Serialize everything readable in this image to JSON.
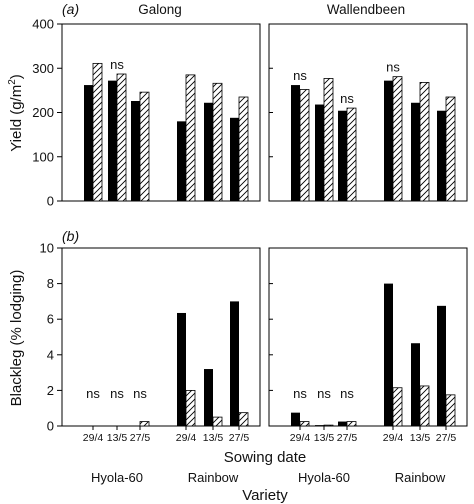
{
  "chart_data": [
    {
      "type": "bar",
      "panel_label": "(a)",
      "ylabel": "Yield (g/m²)",
      "ylabel_base": "Yield (g/m",
      "ylabel_sup": "2",
      "ylabel_end": ")",
      "ylim": [
        0,
        400
      ],
      "yticks": [
        "0",
        "100",
        "200",
        "300",
        "400"
      ],
      "facets": [
        {
          "title": "Galong",
          "groups": [
            {
              "variety": "Hyola-60",
              "dates": [
                {
                  "date": "29/4",
                  "solid": 262,
                  "hatched": 311,
                  "note": ""
                },
                {
                  "date": "13/5",
                  "solid": 272,
                  "hatched": 287,
                  "note": "ns"
                },
                {
                  "date": "27/5",
                  "solid": 226,
                  "hatched": 246,
                  "note": ""
                }
              ]
            },
            {
              "variety": "Rainbow",
              "dates": [
                {
                  "date": "29/4",
                  "solid": 180,
                  "hatched": 285,
                  "note": ""
                },
                {
                  "date": "13/5",
                  "solid": 222,
                  "hatched": 266,
                  "note": ""
                },
                {
                  "date": "27/5",
                  "solid": 188,
                  "hatched": 235,
                  "note": ""
                }
              ]
            }
          ]
        },
        {
          "title": "Wallendbeen",
          "groups": [
            {
              "variety": "Hyola-60",
              "dates": [
                {
                  "date": "29/4",
                  "solid": 262,
                  "hatched": 252,
                  "note": "ns"
                },
                {
                  "date": "13/5",
                  "solid": 218,
                  "hatched": 277,
                  "note": ""
                },
                {
                  "date": "27/5",
                  "solid": 204,
                  "hatched": 210,
                  "note": "ns"
                }
              ]
            },
            {
              "variety": "Rainbow",
              "dates": [
                {
                  "date": "29/4",
                  "solid": 272,
                  "hatched": 281,
                  "note": "ns"
                },
                {
                  "date": "13/5",
                  "solid": 222,
                  "hatched": 268,
                  "note": ""
                },
                {
                  "date": "27/5",
                  "solid": 204,
                  "hatched": 235,
                  "note": ""
                }
              ]
            }
          ]
        }
      ]
    },
    {
      "type": "bar",
      "panel_label": "(b)",
      "ylabel": "Blackleg (% lodging)",
      "ylim": [
        0,
        10
      ],
      "yticks": [
        "0",
        "2",
        "4",
        "6",
        "8",
        "10"
      ],
      "facets": [
        {
          "title": "",
          "groups": [
            {
              "variety": "Hyola-60",
              "dates": [
                {
                  "date": "29/4",
                  "solid": 0,
                  "hatched": 0,
                  "note": "ns"
                },
                {
                  "date": "13/5",
                  "solid": 0,
                  "hatched": 0,
                  "note": "ns"
                },
                {
                  "date": "27/5",
                  "solid": 0,
                  "hatched": 0.25,
                  "note": "ns"
                }
              ]
            },
            {
              "variety": "Rainbow",
              "dates": [
                {
                  "date": "29/4",
                  "solid": 6.35,
                  "hatched": 2.0,
                  "note": ""
                },
                {
                  "date": "13/5",
                  "solid": 3.2,
                  "hatched": 0.5,
                  "note": ""
                },
                {
                  "date": "27/5",
                  "solid": 7.0,
                  "hatched": 0.75,
                  "note": ""
                }
              ]
            }
          ]
        },
        {
          "title": "",
          "groups": [
            {
              "variety": "Hyola-60",
              "dates": [
                {
                  "date": "29/4",
                  "solid": 0.75,
                  "hatched": 0.25,
                  "note": "ns"
                },
                {
                  "date": "13/5",
                  "solid": 0.05,
                  "hatched": 0.05,
                  "note": "ns"
                },
                {
                  "date": "27/5",
                  "solid": 0.25,
                  "hatched": 0.25,
                  "note": "ns"
                }
              ]
            },
            {
              "variety": "Rainbow",
              "dates": [
                {
                  "date": "29/4",
                  "solid": 8.0,
                  "hatched": 2.15,
                  "note": ""
                },
                {
                  "date": "13/5",
                  "solid": 4.65,
                  "hatched": 2.25,
                  "note": ""
                },
                {
                  "date": "27/5",
                  "solid": 6.75,
                  "hatched": 1.75,
                  "note": ""
                }
              ]
            }
          ]
        }
      ]
    }
  ],
  "x_axis": {
    "sowing_label": "Sowing date",
    "variety_label": "Variety"
  },
  "colors": {
    "solid": "#000000",
    "hatch_line": "#000000",
    "hatch_fill": "#ffffff",
    "axis": "#000000"
  }
}
